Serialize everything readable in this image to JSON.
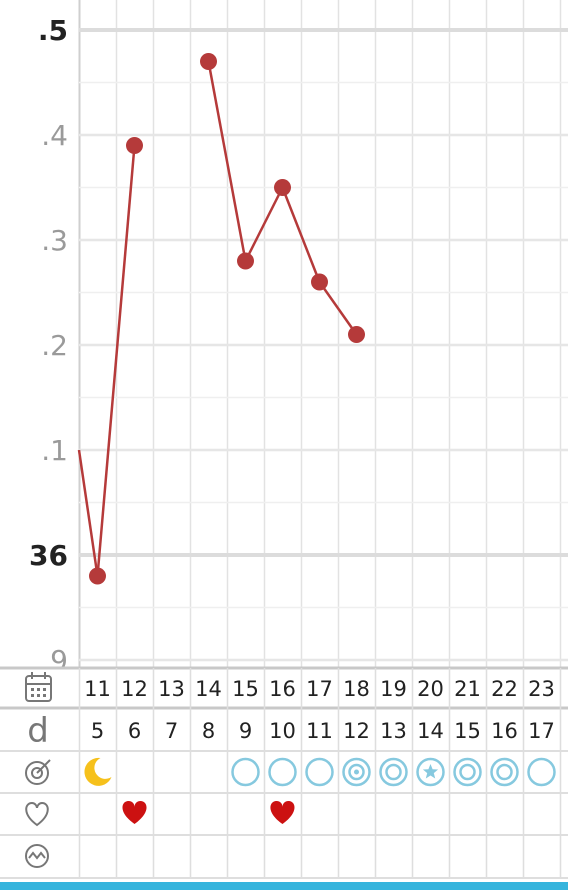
{
  "chart_data": {
    "type": "line",
    "y_tick_labels": [
      ".5",
      ".4",
      ".3",
      ".2",
      ".1",
      "36",
      ".9"
    ],
    "ylim": [
      35.9,
      36.5
    ],
    "dates": [
      "11",
      "12",
      "13",
      "14",
      "15",
      "16",
      "17",
      "18",
      "19",
      "20",
      "21",
      "22",
      "23"
    ],
    "date_colors": [
      "#222222",
      "#2f8fd0",
      "#d9433b",
      "#222222",
      "#222222",
      "#222222",
      "#222222",
      "#222222",
      "#2f8fd0",
      "#d9433b",
      "#222222",
      "#222222",
      "#222222"
    ],
    "cycle_days": [
      "5",
      "6",
      "7",
      "8",
      "9",
      "10",
      "11",
      "12",
      "13",
      "14",
      "15",
      "16",
      "17"
    ],
    "temperatures": [
      35.98,
      36.39,
      null,
      36.47,
      36.28,
      36.35,
      36.26,
      36.21,
      null,
      null,
      null,
      null,
      null
    ],
    "line_color": "#b53a3a",
    "grid": true
  },
  "rows": {
    "day_label": "d",
    "calendar_icon": "calendar-icon",
    "cervix_icon": "target-icon",
    "intimacy_icon": "heart-outline-icon",
    "mood_icon": "face-circle-icon"
  },
  "markers": [
    "moon",
    "none",
    "none",
    "none",
    "circle",
    "circle",
    "circle",
    "double-circle",
    "double-circle",
    "star-circle",
    "double-circle",
    "double-circle",
    "circle"
  ],
  "intimacy": [
    false,
    true,
    false,
    false,
    false,
    true,
    false,
    false,
    false,
    false,
    false,
    false,
    false
  ],
  "colors": {
    "moon": "#f6c11c",
    "circle": "#86c9df",
    "heart": "#cc1111",
    "accent": "#35b4dd"
  }
}
